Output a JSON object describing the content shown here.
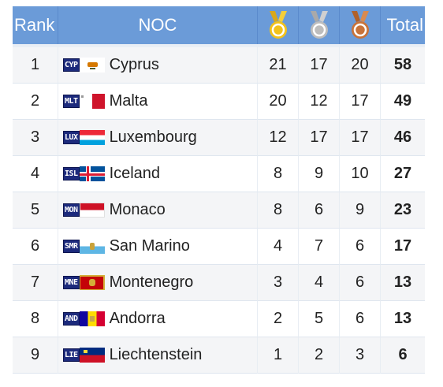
{
  "header": {
    "rank": "Rank",
    "noc": "NOC",
    "total": "Total",
    "gold_icon": "gold-medal-icon",
    "silver_icon": "silver-medal-icon",
    "bronze_icon": "bronze-medal-icon"
  },
  "colors": {
    "header_bg": "#6b9bd8",
    "gold": "#f2c21b",
    "silver": "#bdbdbd",
    "bronze": "#c8733a"
  },
  "rows": [
    {
      "rank": "1",
      "code": "CYP",
      "name": "Cyprus",
      "gold": "21",
      "silver": "17",
      "bronze": "20",
      "total": "58"
    },
    {
      "rank": "2",
      "code": "MLT",
      "name": "Malta",
      "gold": "20",
      "silver": "12",
      "bronze": "17",
      "total": "49"
    },
    {
      "rank": "3",
      "code": "LUX",
      "name": "Luxembourg",
      "gold": "12",
      "silver": "17",
      "bronze": "17",
      "total": "46"
    },
    {
      "rank": "4",
      "code": "ISL",
      "name": "Iceland",
      "gold": "8",
      "silver": "9",
      "bronze": "10",
      "total": "27"
    },
    {
      "rank": "5",
      "code": "MON",
      "name": "Monaco",
      "gold": "8",
      "silver": "6",
      "bronze": "9",
      "total": "23"
    },
    {
      "rank": "6",
      "code": "SMR",
      "name": "San Marino",
      "gold": "4",
      "silver": "7",
      "bronze": "6",
      "total": "17"
    },
    {
      "rank": "7",
      "code": "MNE",
      "name": "Montenegro",
      "gold": "3",
      "silver": "4",
      "bronze": "6",
      "total": "13"
    },
    {
      "rank": "8",
      "code": "AND",
      "name": "Andorra",
      "gold": "2",
      "silver": "5",
      "bronze": "6",
      "total": "13"
    },
    {
      "rank": "9",
      "code": "LIE",
      "name": "Liechtenstein",
      "gold": "1",
      "silver": "2",
      "bronze": "3",
      "total": "6"
    }
  ]
}
